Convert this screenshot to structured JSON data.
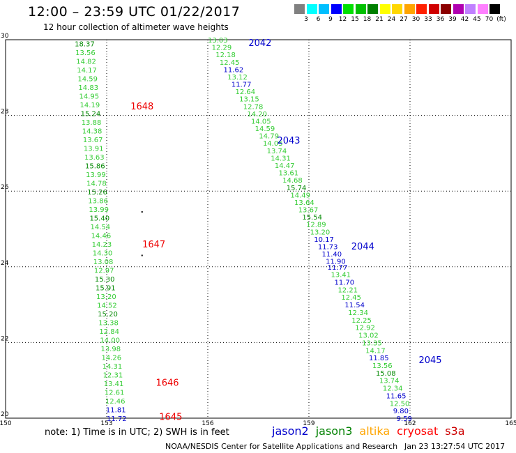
{
  "header": {
    "title": "12:00 – 23:59 UTC 01/22/2017",
    "subtitle": "12 hour collection of altimeter wave heights"
  },
  "color_scale": {
    "swatches": [
      "#808080",
      "#00ffff",
      "#00bfff",
      "#0000ff",
      "#00e000",
      "#00c000",
      "#008000",
      "#ffff00",
      "#ffd700",
      "#ffa500",
      "#ff2000",
      "#d00000",
      "#8b0000",
      "#b000b0",
      "#c080ff",
      "#ff80ff",
      "#000000"
    ],
    "labels": [
      "3",
      "6",
      "9",
      "12",
      "15",
      "18",
      "21",
      "24",
      "27",
      "30",
      "33",
      "36",
      "39",
      "42",
      "45",
      "70",
      "(ft)"
    ]
  },
  "note": "note: 1) Time is in UTC; 2) SWH is in feet",
  "legend": [
    {
      "name": "jason2",
      "color": "#0000cc"
    },
    {
      "name": "jason3",
      "color": "#008000"
    },
    {
      "name": "altika",
      "color": "#ffa500"
    },
    {
      "name": "cryosat",
      "color": "#ff0000"
    },
    {
      "name": "s3a",
      "color": "#cc0000"
    }
  ],
  "footer": "NOAA/NESDIS Center for Satellite Applications and Research",
  "timestamp": "Jan 23 13:27:54 UTC 2017",
  "chart_data": {
    "type": "scatter",
    "title": "12:00 – 23:59 UTC 01/22/2017",
    "xlim": [
      150,
      165
    ],
    "ylim": [
      20,
      30
    ],
    "xticks": [
      150,
      153,
      156,
      159,
      162,
      165
    ],
    "yticks": [
      20,
      22,
      24,
      26,
      28,
      30
    ],
    "grid": true,
    "colors": {
      "green": "#33cc33",
      "dkgreen": "#008800",
      "blue": "#0000cc",
      "red": "#ee0000",
      "black": "#000000"
    },
    "tracks": [
      {
        "x0": 152.05,
        "y0": 29.9,
        "x1": 153.0,
        "y1": 20.0,
        "values": [
          "18.37",
          "13.56",
          "14.82",
          "14.17",
          "14.59",
          "14.83",
          "14.95",
          "14.19",
          "15.24",
          "13.88",
          "14.38",
          "13.67",
          "13.91",
          "13.63",
          "15.86",
          "13.99",
          "14.78",
          "15.26",
          "13.86",
          "13.99",
          "15.40",
          "14.54",
          "14.46",
          "14.23",
          "14.30",
          "13.08",
          "12.97",
          "15.30",
          "15.91",
          "13.20",
          "14.52",
          "15.20",
          "13.38",
          "12.84",
          "14.00",
          "13.98",
          "14.26",
          "14.31",
          "12.31",
          "13.41",
          "12.61",
          "12.46",
          "11.81",
          "11.72"
        ],
        "colors": [
          "dkgreen",
          "green",
          "green",
          "green",
          "green",
          "green",
          "green",
          "green",
          "dkgreen",
          "green",
          "green",
          "green",
          "green",
          "green",
          "dkgreen",
          "green",
          "green",
          "dkgreen",
          "green",
          "green",
          "dkgreen",
          "green",
          "green",
          "green",
          "green",
          "green",
          "green",
          "dkgreen",
          "dkgreen",
          "green",
          "green",
          "dkgreen",
          "green",
          "green",
          "green",
          "green",
          "green",
          "green",
          "green",
          "green",
          "green",
          "green",
          "blue",
          "blue"
        ]
      },
      {
        "x0": 156.0,
        "y0": 30.0,
        "x1": 159.5,
        "y1": 24.15,
        "values": [
          "13.03",
          "12.29",
          "12.18",
          "12.45",
          "11.62",
          "13.12",
          "11.77",
          "12.64",
          "13.15",
          "12.78",
          "14.20",
          "14.05",
          "14.59",
          "14.79",
          "14.05",
          "13.74",
          "14.31",
          "14.47",
          "13.61",
          "14.68",
          "15.74",
          "14.49",
          "13.64",
          "13.67",
          "15.54",
          "12.89",
          "13.20",
          "10.17",
          "11.73",
          "11.40",
          "11.90"
        ],
        "colors": [
          "green",
          "green",
          "green",
          "green",
          "blue",
          "green",
          "blue",
          "green",
          "green",
          "green",
          "green",
          "green",
          "green",
          "green",
          "green",
          "green",
          "green",
          "green",
          "green",
          "green",
          "dkgreen",
          "green",
          "green",
          "green",
          "dkgreen",
          "green",
          "green",
          "blue",
          "blue",
          "blue",
          "blue"
        ]
      },
      {
        "x0": 159.55,
        "y0": 24.0,
        "x1": 161.6,
        "y1": 20.0,
        "values": [
          "11.77",
          "13.41",
          "11.70",
          "12.21",
          "12.45",
          "11.54",
          "12.34",
          "12.25",
          "12.92",
          "13.02",
          "13.35",
          "14.17",
          "11.85",
          "13.56",
          "15.08",
          "13.74",
          "12.34",
          "11.65",
          "12.50",
          "9.80",
          "9.59"
        ],
        "colors": [
          "blue",
          "green",
          "blue",
          "green",
          "green",
          "blue",
          "green",
          "green",
          "green",
          "green",
          "green",
          "green",
          "blue",
          "green",
          "dkgreen",
          "green",
          "green",
          "blue",
          "green",
          "blue",
          "blue"
        ]
      }
    ],
    "time_labels": [
      {
        "text": "2042",
        "x": 157.55,
        "y": 29.93,
        "color": "blue"
      },
      {
        "text": "1648",
        "x": 154.05,
        "y": 28.25,
        "color": "red"
      },
      {
        "text": "2043",
        "x": 158.4,
        "y": 27.35,
        "color": "blue"
      },
      {
        "text": "2044",
        "x": 160.6,
        "y": 24.55,
        "color": "blue"
      },
      {
        "text": "1647",
        "x": 154.4,
        "y": 24.6,
        "color": "red"
      },
      {
        "text": "2045",
        "x": 162.6,
        "y": 21.55,
        "color": "blue"
      },
      {
        "text": "1646",
        "x": 154.8,
        "y": 20.95,
        "color": "red"
      },
      {
        "text": "1645",
        "x": 154.9,
        "y": 20.05,
        "color": "red"
      }
    ],
    "marks": [
      {
        "x": 154.05,
        "y": 25.45
      },
      {
        "x": 154.05,
        "y": 24.3
      }
    ]
  }
}
